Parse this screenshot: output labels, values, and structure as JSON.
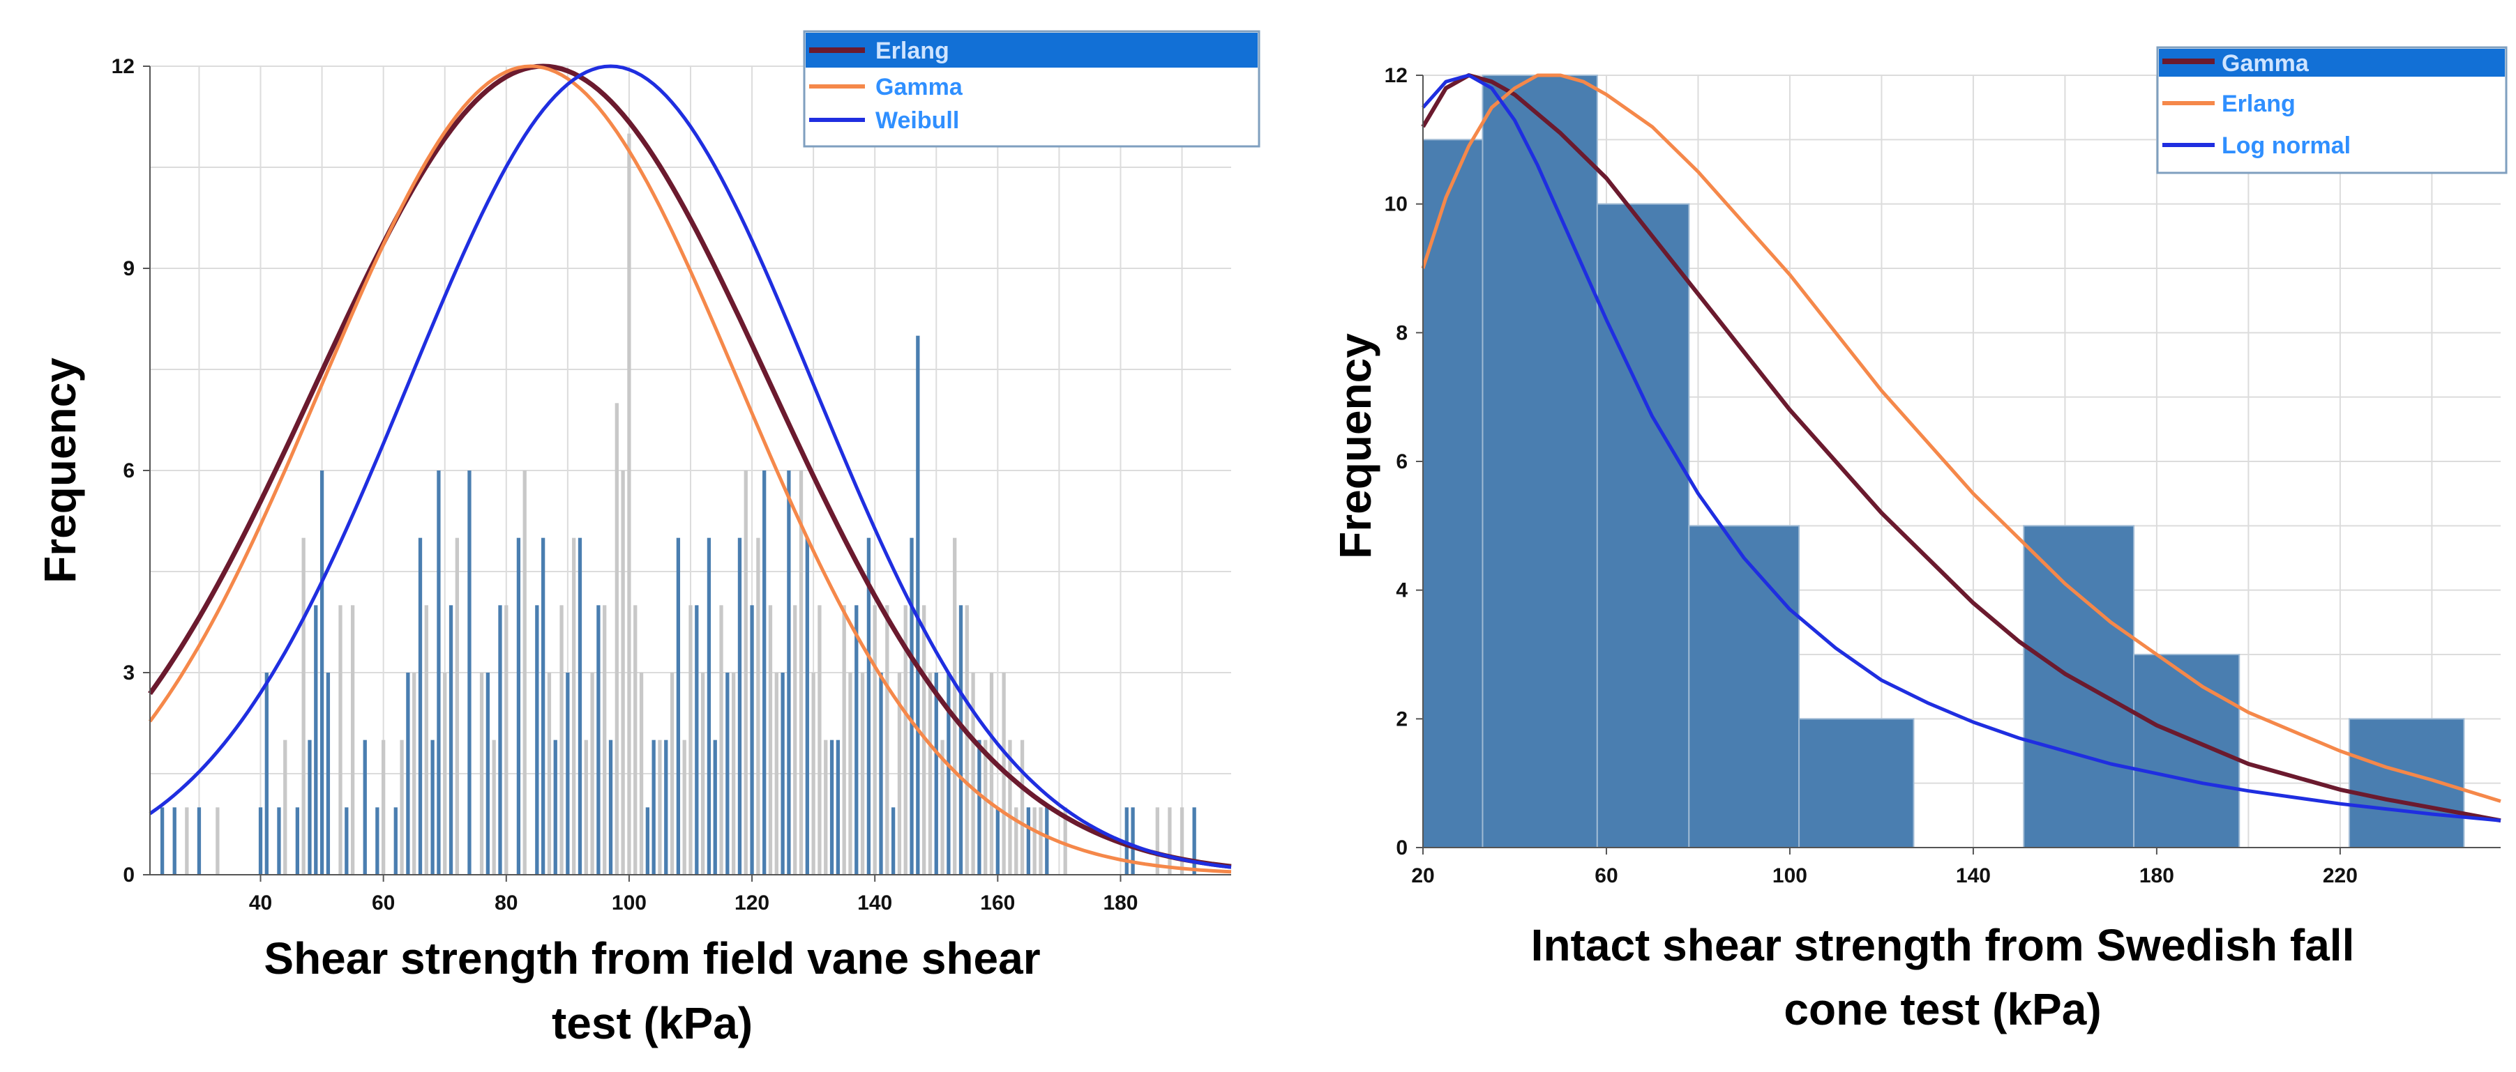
{
  "colors": {
    "erlang_left": "#6b1a2e",
    "gamma_left": "#f5884a",
    "weibull": "#1f2ee0",
    "gamma_right": "#6b1a2e",
    "erlang_right": "#f5884a",
    "lognormal": "#1f2ee0",
    "bar_blue": "#4a7eb0",
    "bar_gray": "#c8c8c8",
    "hist_fill": "#4a7eb0",
    "grid": "#dcdcdc",
    "legend_highlight": "#1270d6"
  },
  "chart_data": [
    {
      "type": "bar",
      "id": "left",
      "title": "",
      "xlabel_line1": "Shear strength from field vane shear",
      "xlabel_line2": "test (kPa)",
      "ylabel": "Frequency",
      "xlim": [
        22,
        198
      ],
      "ylim": [
        0,
        12
      ],
      "xticks": [
        40,
        60,
        80,
        100,
        120,
        140,
        160,
        180
      ],
      "yticks": [
        0,
        3,
        6,
        9,
        12
      ],
      "grid": true,
      "legend_position": "top-right",
      "legend": [
        "Erlang",
        "Gamma",
        "Weibull"
      ],
      "bars_blue": [
        [
          24,
          1
        ],
        [
          26,
          1
        ],
        [
          30,
          1
        ],
        [
          40,
          1
        ],
        [
          41,
          3
        ],
        [
          43,
          1
        ],
        [
          46,
          1
        ],
        [
          48,
          2
        ],
        [
          49,
          4
        ],
        [
          50,
          6
        ],
        [
          51,
          3
        ],
        [
          54,
          1
        ],
        [
          57,
          2
        ],
        [
          59,
          1
        ],
        [
          62,
          1
        ],
        [
          64,
          3
        ],
        [
          66,
          5
        ],
        [
          68,
          2
        ],
        [
          69,
          6
        ],
        [
          71,
          4
        ],
        [
          74,
          6
        ],
        [
          77,
          3
        ],
        [
          79,
          4
        ],
        [
          82,
          5
        ],
        [
          85,
          4
        ],
        [
          86,
          5
        ],
        [
          88,
          2
        ],
        [
          90,
          3
        ],
        [
          92,
          5
        ],
        [
          95,
          4
        ],
        [
          97,
          2
        ],
        [
          103,
          1
        ],
        [
          104,
          2
        ],
        [
          106,
          2
        ],
        [
          108,
          5
        ],
        [
          111,
          4
        ],
        [
          113,
          5
        ],
        [
          114,
          2
        ],
        [
          116,
          3
        ],
        [
          118,
          5
        ],
        [
          120,
          4
        ],
        [
          122,
          6
        ],
        [
          125,
          3
        ],
        [
          126,
          6
        ],
        [
          129,
          5
        ],
        [
          133,
          2
        ],
        [
          134,
          2
        ],
        [
          137,
          4
        ],
        [
          139,
          5
        ],
        [
          141,
          3
        ],
        [
          143,
          1
        ],
        [
          146,
          5
        ],
        [
          147,
          8
        ],
        [
          150,
          3
        ],
        [
          152,
          3
        ],
        [
          154,
          4
        ],
        [
          157,
          2
        ],
        [
          160,
          1
        ],
        [
          165,
          1
        ],
        [
          168,
          1
        ],
        [
          181,
          1
        ],
        [
          182,
          1
        ],
        [
          192,
          1
        ]
      ],
      "bars_gray": [
        [
          28,
          1
        ],
        [
          33,
          1
        ],
        [
          44,
          2
        ],
        [
          47,
          5
        ],
        [
          53,
          4
        ],
        [
          55,
          4
        ],
        [
          60,
          2
        ],
        [
          63,
          2
        ],
        [
          65,
          3
        ],
        [
          67,
          4
        ],
        [
          70,
          3
        ],
        [
          72,
          5
        ],
        [
          76,
          3
        ],
        [
          78,
          2
        ],
        [
          80,
          4
        ],
        [
          83,
          6
        ],
        [
          87,
          3
        ],
        [
          89,
          4
        ],
        [
          91,
          5
        ],
        [
          93,
          2
        ],
        [
          94,
          3
        ],
        [
          96,
          4
        ],
        [
          98,
          7
        ],
        [
          99,
          6
        ],
        [
          100,
          11
        ],
        [
          101,
          4
        ],
        [
          102,
          3
        ],
        [
          105,
          2
        ],
        [
          107,
          3
        ],
        [
          109,
          2
        ],
        [
          110,
          4
        ],
        [
          112,
          3
        ],
        [
          115,
          4
        ],
        [
          117,
          3
        ],
        [
          119,
          6
        ],
        [
          121,
          5
        ],
        [
          123,
          4
        ],
        [
          124,
          3
        ],
        [
          127,
          4
        ],
        [
          128,
          6
        ],
        [
          130,
          3
        ],
        [
          131,
          4
        ],
        [
          132,
          2
        ],
        [
          135,
          4
        ],
        [
          136,
          3
        ],
        [
          138,
          3
        ],
        [
          140,
          4
        ],
        [
          142,
          4
        ],
        [
          144,
          3
        ],
        [
          145,
          4
        ],
        [
          148,
          4
        ],
        [
          149,
          3
        ],
        [
          151,
          2
        ],
        [
          153,
          5
        ],
        [
          155,
          4
        ],
        [
          156,
          3
        ],
        [
          158,
          2
        ],
        [
          159,
          3
        ],
        [
          161,
          3
        ],
        [
          162,
          2
        ],
        [
          163,
          1
        ],
        [
          164,
          2
        ],
        [
          166,
          1
        ],
        [
          167,
          1
        ],
        [
          171,
          1
        ],
        [
          186,
          1
        ],
        [
          188,
          1
        ],
        [
          190,
          1
        ]
      ],
      "series": [
        {
          "name": "Erlang",
          "distribution": "normal",
          "mean": 86,
          "sd": 37,
          "peak": 12
        },
        {
          "name": "Gamma",
          "distribution": "normal",
          "mean": 84,
          "sd": 34,
          "peak": 12
        },
        {
          "name": "Weibull",
          "distribution": "normal",
          "mean": 97,
          "sd": 33,
          "peak": 12
        }
      ]
    },
    {
      "type": "bar",
      "id": "right",
      "title": "",
      "xlabel_line1": "Intact shear strength from Swedish fall",
      "xlabel_line2": "cone test (kPa)",
      "ylabel": "Frequency",
      "xlim": [
        20,
        255
      ],
      "ylim": [
        0,
        12
      ],
      "xticks": [
        20,
        60,
        100,
        140,
        180,
        220
      ],
      "yticks": [
        0,
        2,
        4,
        6,
        8,
        10,
        12
      ],
      "grid": true,
      "legend_position": "top-right",
      "legend": [
        "Gamma",
        "Erlang",
        "Log normal"
      ],
      "bin_edges": [
        20,
        33,
        58,
        78,
        102,
        127,
        151,
        175,
        198,
        222,
        247
      ],
      "counts": [
        11,
        12,
        10,
        5,
        2,
        0,
        5,
        3,
        0,
        2
      ],
      "series": [
        {
          "name": "Gamma",
          "x": [
            20,
            25,
            30,
            35,
            40,
            50,
            60,
            70,
            80,
            90,
            100,
            110,
            120,
            130,
            140,
            150,
            160,
            170,
            180,
            190,
            200,
            210,
            220,
            230,
            240,
            255
          ],
          "y": [
            11.2,
            11.8,
            12,
            11.9,
            11.7,
            11.1,
            10.4,
            9.5,
            8.6,
            7.7,
            6.8,
            6.0,
            5.2,
            4.5,
            3.8,
            3.2,
            2.7,
            2.3,
            1.9,
            1.6,
            1.3,
            1.1,
            0.9,
            0.75,
            0.62,
            0.42
          ]
        },
        {
          "name": "Erlang",
          "x": [
            20,
            25,
            30,
            35,
            40,
            45,
            50,
            55,
            60,
            70,
            80,
            90,
            100,
            110,
            120,
            130,
            140,
            150,
            160,
            170,
            180,
            190,
            200,
            210,
            220,
            230,
            240,
            255
          ],
          "y": [
            9.0,
            10.1,
            10.9,
            11.5,
            11.8,
            12,
            12,
            11.9,
            11.7,
            11.2,
            10.5,
            9.7,
            8.9,
            8.0,
            7.1,
            6.3,
            5.5,
            4.8,
            4.1,
            3.5,
            3.0,
            2.5,
            2.1,
            1.8,
            1.5,
            1.25,
            1.05,
            0.72
          ]
        },
        {
          "name": "Log normal",
          "x": [
            20,
            25,
            30,
            35,
            40,
            45,
            50,
            55,
            60,
            70,
            80,
            90,
            100,
            110,
            120,
            130,
            140,
            150,
            160,
            170,
            180,
            190,
            200,
            210,
            220,
            230,
            240,
            255
          ],
          "y": [
            11.5,
            11.9,
            12,
            11.8,
            11.3,
            10.6,
            9.8,
            9.0,
            8.2,
            6.7,
            5.5,
            4.5,
            3.7,
            3.1,
            2.6,
            2.25,
            1.95,
            1.7,
            1.5,
            1.3,
            1.15,
            1.0,
            0.88,
            0.78,
            0.68,
            0.6,
            0.52,
            0.42
          ]
        }
      ]
    }
  ]
}
